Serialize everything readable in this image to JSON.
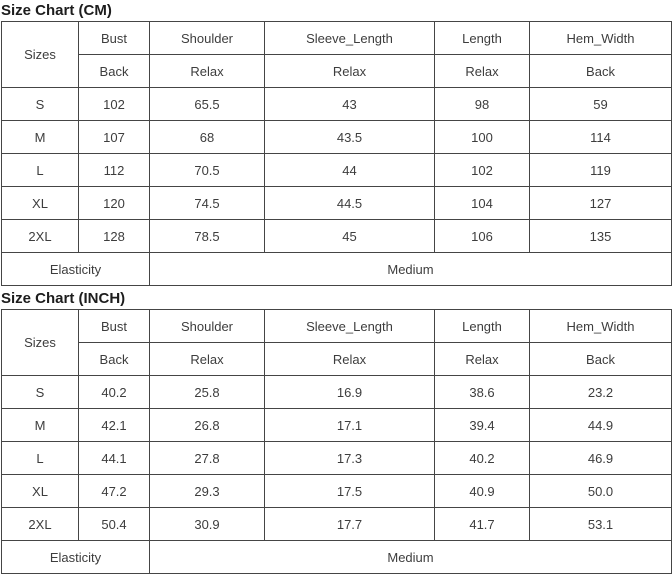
{
  "colors": {
    "background": "#ffffff",
    "border": "#454545",
    "text": "#3d3d3d",
    "title": "#1d1d1d"
  },
  "cm": {
    "title": "Size Chart (CM)",
    "columns": [
      "Sizes",
      "Bust",
      "Shoulder",
      "Sleeve_Length",
      "Length",
      "Hem_Width"
    ],
    "sub_headers": [
      "Back",
      "Relax",
      "Relax",
      "Relax",
      "Back"
    ],
    "rows": [
      [
        "S",
        "102",
        "65.5",
        "43",
        "98",
        "59"
      ],
      [
        "M",
        "107",
        "68",
        "43.5",
        "100",
        "114"
      ],
      [
        "L",
        "112",
        "70.5",
        "44",
        "102",
        "119"
      ],
      [
        "XL",
        "120",
        "74.5",
        "44.5",
        "104",
        "127"
      ],
      [
        "2XL",
        "128",
        "78.5",
        "45",
        "106",
        "135"
      ]
    ],
    "elasticity_label": "Elasticity",
    "elasticity_value": "Medium"
  },
  "inch": {
    "title": "Size Chart (INCH)",
    "columns": [
      "Sizes",
      "Bust",
      "Shoulder",
      "Sleeve_Length",
      "Length",
      "Hem_Width"
    ],
    "sub_headers": [
      "Back",
      "Relax",
      "Relax",
      "Relax",
      "Back"
    ],
    "rows": [
      [
        "S",
        "40.2",
        "25.8",
        "16.9",
        "38.6",
        "23.2"
      ],
      [
        "M",
        "42.1",
        "26.8",
        "17.1",
        "39.4",
        "44.9"
      ],
      [
        "L",
        "44.1",
        "27.8",
        "17.3",
        "40.2",
        "46.9"
      ],
      [
        "XL",
        "47.2",
        "29.3",
        "17.5",
        "40.9",
        "50.0"
      ],
      [
        "2XL",
        "50.4",
        "30.9",
        "17.7",
        "41.7",
        "53.1"
      ]
    ],
    "elasticity_label": "Elasticity",
    "elasticity_value": "Medium"
  }
}
